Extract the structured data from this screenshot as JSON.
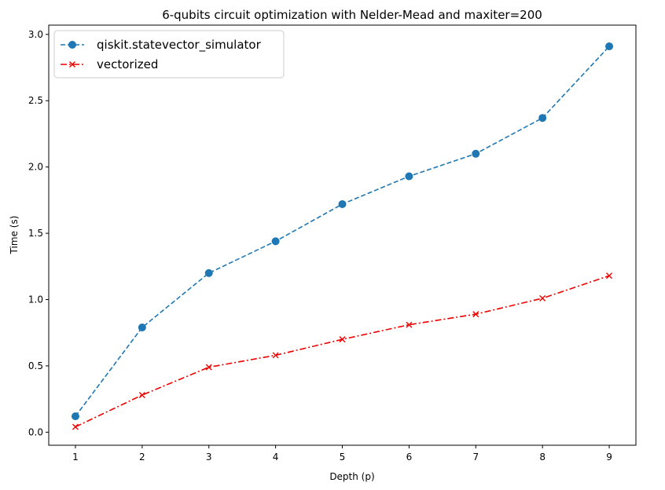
{
  "chart_data": {
    "type": "line",
    "title": "6-qubits circuit optimization with Nelder-Mead and maxiter=200",
    "xlabel": "Depth (p)",
    "ylabel": "Time (s)",
    "x": [
      1,
      2,
      3,
      4,
      5,
      6,
      7,
      8,
      9
    ],
    "xlim": [
      0.6,
      9.4
    ],
    "ylim": [
      -0.0985,
      3.07
    ],
    "xticks": [
      "1",
      "2",
      "3",
      "4",
      "5",
      "6",
      "7",
      "8",
      "9"
    ],
    "yticks": [
      "0.0",
      "0.5",
      "1.0",
      "1.5",
      "2.0",
      "2.5",
      "3.0"
    ],
    "grid": false,
    "legend_position": "upper-left",
    "series": [
      {
        "name": "qiskit.statevector_simulator",
        "values": [
          0.12,
          0.79,
          1.2,
          1.44,
          1.72,
          1.93,
          2.1,
          2.37,
          2.91
        ],
        "color": "#1f77b4",
        "linestyle": "dashed",
        "marker": "circle"
      },
      {
        "name": "vectorized",
        "values": [
          0.04,
          0.28,
          0.49,
          0.58,
          0.7,
          0.81,
          0.89,
          1.01,
          1.18
        ],
        "color": "#ee0000",
        "linestyle": "dash-dot",
        "marker": "x"
      }
    ]
  }
}
